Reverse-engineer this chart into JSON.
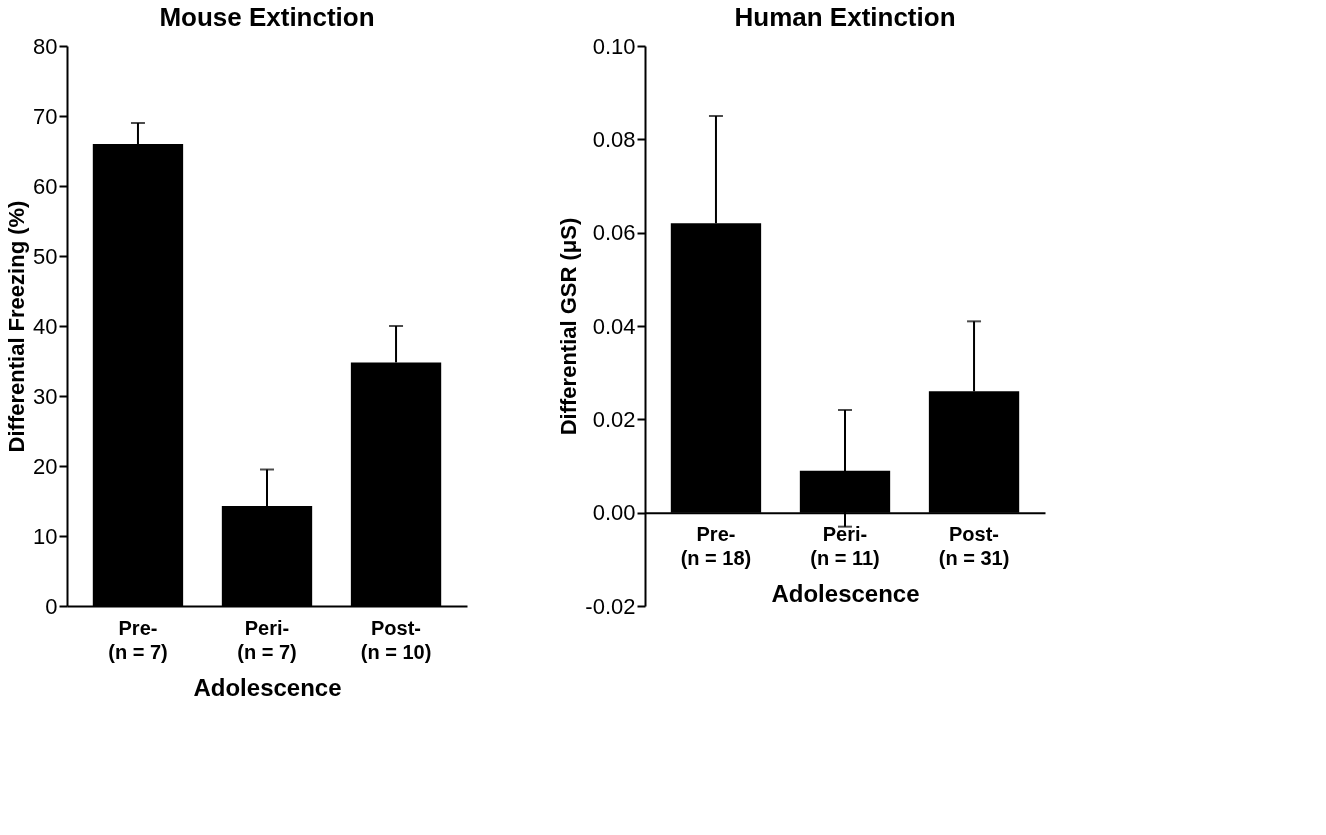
{
  "chart_data": [
    {
      "type": "bar",
      "title": "Mouse Extinction",
      "xlabel": "Adolescence",
      "ylabel": "Differential Freezing (%)",
      "categories": [
        "Pre-\n(n = 7)",
        "Peri-\n(n = 7)",
        "Post-\n(n = 10)"
      ],
      "values": [
        66,
        14.3,
        34.8
      ],
      "errors": [
        [
          66,
          69
        ],
        [
          14.3,
          19.5
        ],
        [
          34.8,
          40
        ]
      ],
      "color": "#000000",
      "ylim": [
        0,
        80
      ],
      "yticks": [
        0,
        10,
        20,
        30,
        40,
        50,
        60,
        70,
        80
      ],
      "grid": false
    },
    {
      "type": "bar",
      "title": "Human Extinction",
      "xlabel": "Adolescence",
      "ylabel": "Differential GSR (μS)",
      "categories": [
        "Pre-\n(n = 18)",
        "Peri-\n(n = 11)",
        "Post-\n(n = 31)"
      ],
      "values": [
        0.062,
        0.009,
        0.026
      ],
      "errors": [
        [
          0.062,
          0.085
        ],
        [
          -0.003,
          0.022
        ],
        [
          0.026,
          0.041
        ]
      ],
      "color": "#000000",
      "ylim": [
        -0.02,
        0.1
      ],
      "yticks": [
        {
          "value": -0.02,
          "label": "-0.02"
        },
        {
          "value": 0,
          "label": "0.00"
        },
        {
          "value": 0.02,
          "label": "0.02"
        },
        {
          "value": 0.04,
          "label": "0.04"
        },
        {
          "value": 0.06,
          "label": "0.06"
        },
        {
          "value": 0.08,
          "label": "0.08"
        },
        {
          "value": 0.1,
          "label": "0.10"
        }
      ],
      "grid": false
    }
  ]
}
